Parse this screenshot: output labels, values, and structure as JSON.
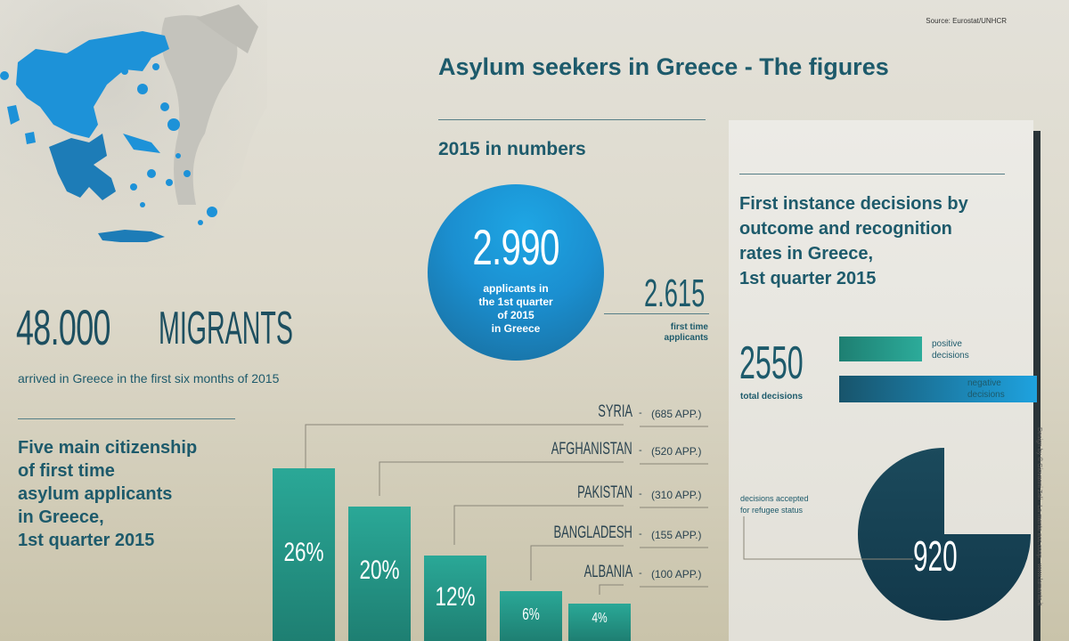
{
  "source": "Source: Eurostat/UNHCR",
  "title": "Asylum seekers in Greece - The figures",
  "subtitle": "2015 in numbers",
  "migrants": {
    "number": "48.000",
    "word": "MIGRANTS",
    "caption": "arrived in Greece in the first six months of 2015"
  },
  "applicants": {
    "number": "2.990",
    "label_lines": [
      "applicants in",
      "the 1st quarter",
      "of 2015",
      "in Greece"
    ],
    "first_time_number": "2.615",
    "first_time_label_lines": [
      "first time",
      "applicants"
    ]
  },
  "citizenship": {
    "title_lines": [
      "Five main citizenship",
      "of first time",
      "asylum applicants",
      "in Greece,",
      "1st quarter 2015"
    ],
    "items": [
      {
        "country": "SYRIA",
        "apps": "(685 APP.)",
        "pct": "26%"
      },
      {
        "country": "AFGHANISTAN",
        "apps": "(520 APP.)",
        "pct": "20%"
      },
      {
        "country": "PAKISTAN",
        "apps": "(310 APP.)",
        "pct": "12%"
      },
      {
        "country": "BANGLADESH",
        "apps": "(155 APP.)",
        "pct": "6%"
      },
      {
        "country": "ALBANIA",
        "apps": "(100 APP.)",
        "pct": "4%"
      }
    ]
  },
  "decisions": {
    "title_lines": [
      "First instance decisions by",
      "outcome and recognition",
      "rates in Greece,",
      "1st quarter 2015"
    ],
    "total_number": "2550",
    "total_label": "total decisions",
    "positive_label_lines": [
      "positive",
      "decisions"
    ],
    "negative_label_lines": [
      "negative",
      "decisions"
    ],
    "accepted_label_lines": [
      "decisions accepted",
      "for refugee status"
    ],
    "accepted_number": "920",
    "colors": {
      "positive": "#2aa897",
      "negative": "#1ea2df",
      "pie": "#1b4a5c"
    }
  },
  "credit": "Design by © Giovanni Zali · La-mente ecc.coop · www.lamente.it",
  "map": {
    "icon": "greece-map-icon",
    "highlight_color": "#1d92d8"
  }
}
